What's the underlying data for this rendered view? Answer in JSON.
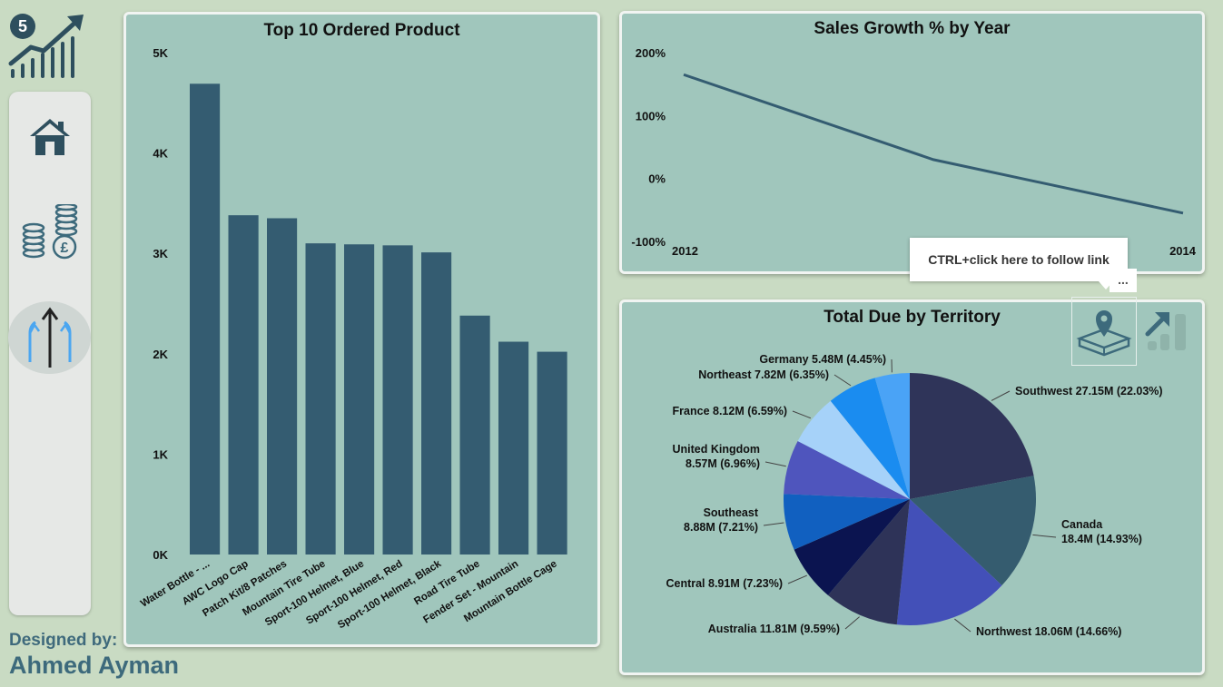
{
  "sidebar": {
    "badge": "5",
    "items": [
      {
        "name": "home"
      },
      {
        "name": "finance"
      },
      {
        "name": "growth",
        "active": true
      }
    ],
    "designed_label": "Designed by:",
    "author": "Ahmed Ayman"
  },
  "tooltip": {
    "text": "CTRL+click here to follow link",
    "more": "..."
  },
  "colors": {
    "bar": "#345c71",
    "line": "#345c71",
    "panel": "#a0c6bc",
    "background": "#c9dbc3"
  },
  "chart_data": [
    {
      "type": "bar",
      "title": "Top 10 Ordered Product",
      "categories": [
        "Water Bottle - ...",
        "AWC Logo Cap",
        "Patch Kit/8 Patches",
        "Mountain Tire Tube",
        "Sport-100 Helmet, Blue",
        "Sport-100 Helmet, Red",
        "Sport-100 Helmet, Black",
        "Road Tire Tube",
        "Fender Set - Mountain",
        "Mountain Bottle Cage"
      ],
      "values": [
        4690,
        3380,
        3350,
        3100,
        3090,
        3080,
        3010,
        2380,
        2120,
        2020
      ],
      "ylim": [
        0,
        5000
      ],
      "yticks": [
        "0K",
        "1K",
        "2K",
        "3K",
        "4K",
        "5K"
      ],
      "xlabel": "",
      "ylabel": ""
    },
    {
      "type": "line",
      "title": "Sales Growth % by Year",
      "x": [
        2012,
        2013,
        2014
      ],
      "values": [
        165,
        30,
        -55
      ],
      "ylim": [
        -100,
        200
      ],
      "yticks": [
        "-100%",
        "0%",
        "100%",
        "200%"
      ],
      "xticks": [
        "2012",
        "2014"
      ]
    },
    {
      "type": "pie",
      "title": "Total Due by Territory",
      "slices": [
        {
          "name": "Southwest",
          "value": 27.15,
          "label": "Southwest 27.15M (22.03%)",
          "color": "#2f3459"
        },
        {
          "name": "Canada",
          "value": 18.4,
          "label": "Canada 18.4M (14.93%)",
          "color": "#355c6f"
        },
        {
          "name": "Northwest",
          "value": 18.06,
          "label": "Northwest 18.06M (14.66%)",
          "color": "#4350b8"
        },
        {
          "name": "Australia",
          "value": 11.81,
          "label": "Australia 11.81M (9.59%)",
          "color": "#2e3358"
        },
        {
          "name": "Central",
          "value": 8.91,
          "label": "Central 8.91M (7.23%)",
          "color": "#0b1450"
        },
        {
          "name": "Southeast",
          "value": 8.88,
          "label": "Southeast 8.88M (7.21%)",
          "color": "#1160c0"
        },
        {
          "name": "United Kingdom",
          "value": 8.57,
          "label": "United Kingdom 8.57M (6.96%)",
          "color": "#4f55bd"
        },
        {
          "name": "France",
          "value": 8.12,
          "label": "France 8.12M (6.59%)",
          "color": "#a6d2f9"
        },
        {
          "name": "Northeast",
          "value": 7.82,
          "label": "Northeast 7.82M (6.35%)",
          "color": "#1a8cf0"
        },
        {
          "name": "Germany",
          "value": 5.48,
          "label": "Germany 5.48M (4.45%)",
          "color": "#4aa3f6"
        }
      ]
    }
  ]
}
